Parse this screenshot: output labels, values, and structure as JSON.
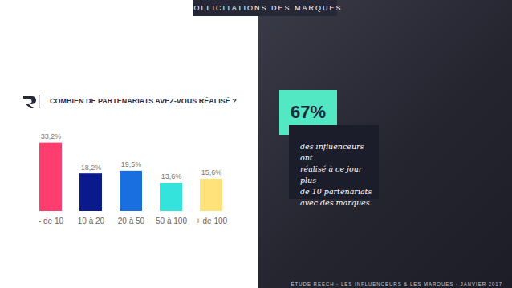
{
  "header": "SOLLICITATIONS DES MARQUES",
  "highlight": {
    "value": "67%",
    "text": [
      "des influenceurs ont",
      "réalisé à ce jour plus",
      "de 10 partenariats",
      "avec des marques."
    ]
  },
  "footer": "ÉTUDE REECH - LES INFLUENCEURS & LES MARQUES - JANVIER 2017",
  "chart_data": {
    "type": "bar",
    "title": "COMBIEN DE PARTENARIATS AVEZ-VOUS RÉALISÉ ?",
    "categories": [
      "- de 10",
      "10 à 20",
      "20 à 50",
      "50 à 100",
      "+ de 100"
    ],
    "values": [
      33.2,
      18.2,
      19.5,
      13.6,
      15.6
    ],
    "value_labels": [
      "33,2%",
      "18,2%",
      "19,5%",
      "13,6%",
      "15,6%"
    ],
    "colors": [
      "#ff3d6e",
      "#0a1a8c",
      "#1a6fe0",
      "#33e3dc",
      "#ffe37a"
    ],
    "ylim": [
      0,
      35
    ],
    "data_labels": true,
    "tick_labels": "x"
  }
}
